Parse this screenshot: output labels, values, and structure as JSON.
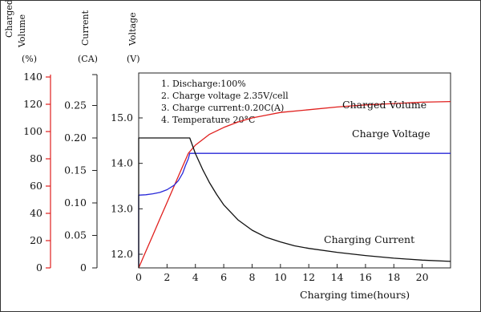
{
  "chart_data": {
    "type": "line",
    "axis_titles": {
      "volume": [
        "Charged",
        "Volume",
        "(%)"
      ],
      "current": [
        "Current",
        "(CA)"
      ],
      "voltage": [
        "Voltage",
        "(V)"
      ]
    },
    "xlabel": "Charging time(hours)",
    "x_ticks": [
      "0",
      "2",
      "4",
      "6",
      "8",
      "10",
      "12",
      "14",
      "16",
      "18",
      "20"
    ],
    "xlim": [
      0,
      22
    ],
    "volume_ticks": [
      "0",
      "20",
      "40",
      "60",
      "80",
      "100",
      "120",
      "140"
    ],
    "volume_lim": [
      0,
      140
    ],
    "current_ticks": [
      "0",
      "0.05",
      "0.10",
      "0.15",
      "0.20",
      "0.25"
    ],
    "current_lim": [
      0,
      0.3
    ],
    "voltage_ticks": [
      "12.0",
      "13.0",
      "14.0",
      "15.0"
    ],
    "voltage_lim": [
      11.7,
      15.9
    ],
    "notes": [
      "1. Discharge:100%",
      "2. Charge voltage 2.35V/cell",
      "3. Charge current:0.20C(A)",
      "4. Temperature 20°C"
    ],
    "series": [
      {
        "name": "Charged Volume",
        "color": "#e0201e",
        "axis": "volume",
        "points": [
          [
            0,
            0
          ],
          [
            0.5,
            12
          ],
          [
            1,
            24
          ],
          [
            1.5,
            36
          ],
          [
            2,
            48
          ],
          [
            2.5,
            60
          ],
          [
            3,
            72
          ],
          [
            3.5,
            84
          ],
          [
            4,
            90
          ],
          [
            5,
            98
          ],
          [
            6,
            103
          ],
          [
            7,
            107
          ],
          [
            8,
            110
          ],
          [
            9,
            112
          ],
          [
            10,
            114
          ],
          [
            12,
            116
          ],
          [
            14,
            118
          ],
          [
            16,
            119.5
          ],
          [
            18,
            120.5
          ],
          [
            20,
            121.5
          ],
          [
            22,
            122
          ]
        ]
      },
      {
        "name": "Charge Voltage",
        "color": "#2828d8",
        "axis": "voltage",
        "points": [
          [
            0,
            11.75
          ],
          [
            0,
            13.3
          ],
          [
            0.5,
            13.31
          ],
          [
            1,
            13.33
          ],
          [
            1.5,
            13.36
          ],
          [
            2,
            13.42
          ],
          [
            2.5,
            13.52
          ],
          [
            2.8,
            13.62
          ],
          [
            3.1,
            13.78
          ],
          [
            3.3,
            13.95
          ],
          [
            3.5,
            14.1
          ],
          [
            3.6,
            14.22
          ],
          [
            22,
            14.22
          ]
        ]
      },
      {
        "name": "Charging Current",
        "color": "#111111",
        "axis": "current",
        "points": [
          [
            0,
            0
          ],
          [
            0,
            0.2
          ],
          [
            3.6,
            0.2
          ],
          [
            4,
            0.176
          ],
          [
            4.5,
            0.152
          ],
          [
            5,
            0.131
          ],
          [
            5.5,
            0.113
          ],
          [
            6,
            0.097
          ],
          [
            7,
            0.074
          ],
          [
            8,
            0.058
          ],
          [
            9,
            0.047
          ],
          [
            10,
            0.04
          ],
          [
            11,
            0.034
          ],
          [
            12,
            0.03
          ],
          [
            14,
            0.024
          ],
          [
            16,
            0.019
          ],
          [
            18,
            0.015
          ],
          [
            20,
            0.012
          ],
          [
            22,
            0.01
          ]
        ]
      }
    ],
    "series_labels": {
      "volume": "Charged Volume",
      "voltage": "Charge Voltage",
      "current": "Charging Current"
    }
  }
}
